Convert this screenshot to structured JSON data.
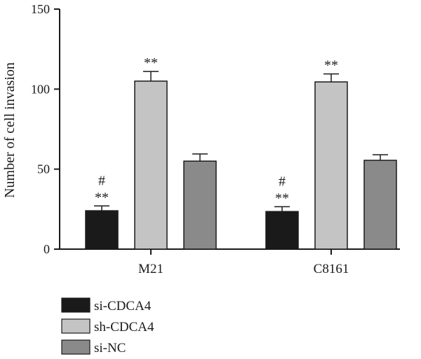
{
  "chart_data": {
    "type": "bar",
    "categories": [
      "M21",
      "C8161"
    ],
    "ylabel": "Number of cell invasion",
    "xlabel": "",
    "ylim": [
      0,
      150
    ],
    "yticks": [
      0,
      50,
      100,
      150
    ],
    "grid": false,
    "legend_position": "bottom-left",
    "series": [
      {
        "name": "si-CDCA4",
        "color": "#1a1a1a",
        "values": [
          24,
          23.5
        ],
        "errors": [
          3,
          3
        ],
        "annotations": [
          "#\n**",
          "#\n**"
        ]
      },
      {
        "name": "sh-CDCA4",
        "color": "#c4c4c4",
        "values": [
          105,
          104.5
        ],
        "errors": [
          6,
          5
        ],
        "annotations": [
          "**",
          "**"
        ]
      },
      {
        "name": "si-NC",
        "color": "#8a8a8a",
        "values": [
          55,
          55.5
        ],
        "errors": [
          4.5,
          3.5
        ],
        "annotations": [
          "",
          ""
        ]
      }
    ]
  }
}
